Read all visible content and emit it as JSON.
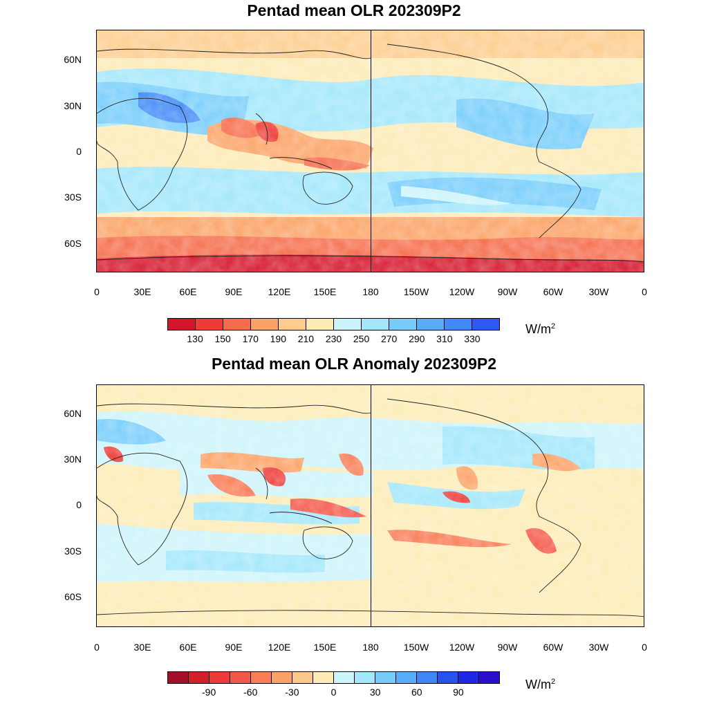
{
  "panels": [
    {
      "title": "Pentad mean OLR 202309P2",
      "colorbar": {
        "colors": [
          "#d4162a",
          "#ee3b36",
          "#f56d4c",
          "#fba265",
          "#fdcd8e",
          "#fdeab6",
          "#cdf4fa",
          "#a2e7fb",
          "#76cdfb",
          "#58adfa",
          "#4189f6",
          "#2d58f2"
        ],
        "labels": [
          "130",
          "150",
          "170",
          "190",
          "210",
          "230",
          "250",
          "270",
          "290",
          "310",
          "330"
        ],
        "unit": "W/m",
        "unit_sup": "2"
      }
    },
    {
      "title": "Pentad mean OLR Anomaly 202309P2",
      "colorbar": {
        "colors": [
          "#a50f27",
          "#d21f2c",
          "#ec3a36",
          "#f4584a",
          "#f87c56",
          "#fba266",
          "#fdc88c",
          "#fdecb6",
          "#cdf4fa",
          "#a2e7fb",
          "#76cdfb",
          "#58adfa",
          "#3c86f5",
          "#2852f0",
          "#1e28e4",
          "#2a0fcd"
        ],
        "labels": [
          "-90",
          "-60",
          "-30",
          "0",
          "30",
          "60",
          "90"
        ],
        "unit": "W/m",
        "unit_sup": "2"
      }
    }
  ],
  "lat_labels": [
    "60N",
    "30N",
    "0",
    "30S",
    "60S"
  ],
  "lon_labels": [
    "0",
    "30E",
    "60E",
    "90E",
    "120E",
    "150E",
    "180",
    "150W",
    "120W",
    "90W",
    "60W",
    "30W",
    "0"
  ]
}
